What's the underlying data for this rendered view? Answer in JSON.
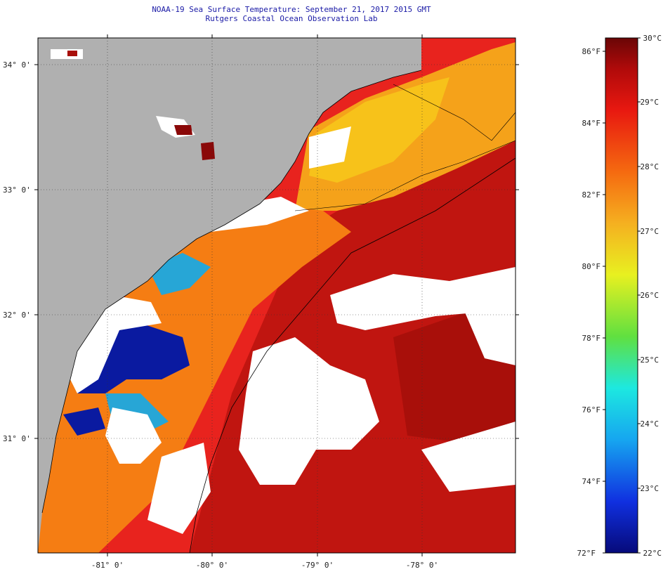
{
  "header": {
    "title_line1": "NOAA-19 Sea Surface Temperature:  September 21, 2017 2015 GMT",
    "title_line2": "Rutgers Coastal Ocean Observation Lab"
  },
  "map": {
    "lat_labels": [
      "34° 0'",
      "33° 0'",
      "32° 0'",
      "31° 0'"
    ],
    "lon_labels": [
      "-81° 0'",
      "-80° 0'",
      "-79° 0'",
      "-78° 0'"
    ],
    "colors": {
      "land": "#b0b0b0",
      "cloud": "#ffffff",
      "warm_water": "#e8231e",
      "hot_water": "#a80f0a",
      "mid_water": "#f57d13",
      "cool_water": "#f7c21a",
      "cold_water": "#0a1aa0",
      "teal_water": "#27a6d6"
    }
  },
  "colorbar": {
    "fahrenheit_labels": [
      "86°F",
      "84°F",
      "82°F",
      "80°F",
      "78°F",
      "76°F",
      "74°F",
      "72°F"
    ],
    "celsius_labels": [
      "30°C",
      "29°C",
      "28°C",
      "27°C",
      "26°C",
      "25°C",
      "24°C",
      "23°C",
      "22°C"
    ],
    "stops": [
      "#060a7a",
      "#1030e0",
      "#16a6f0",
      "#1de8e0",
      "#60e040",
      "#e8f020",
      "#f5b020",
      "#f56a10",
      "#e81810",
      "#b00a0a",
      "#6a0606"
    ]
  }
}
